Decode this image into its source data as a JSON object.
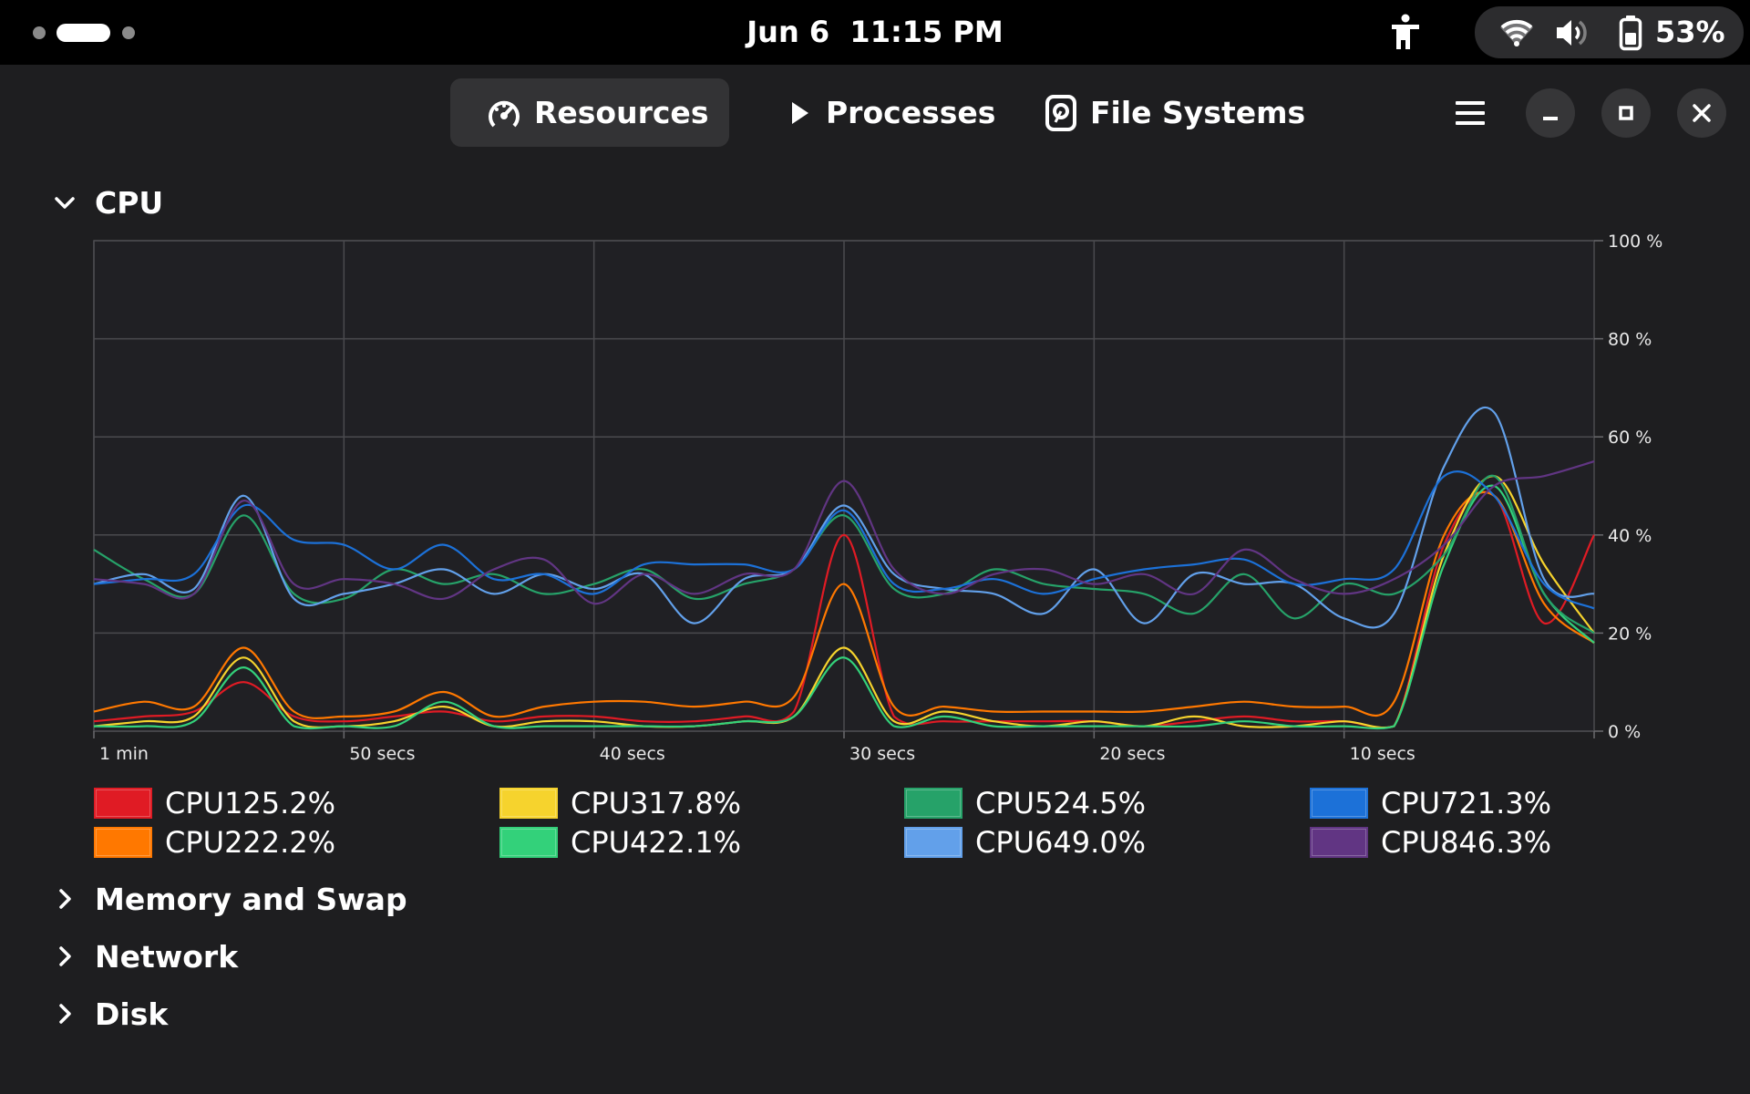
{
  "statusbar": {
    "date": "Jun 6",
    "time": "11:15 PM",
    "battery_percent": "53%",
    "icons": [
      "accessibility-icon",
      "wifi-icon",
      "volume-icon",
      "battery-icon"
    ]
  },
  "header": {
    "tabs": [
      {
        "label": "Resources",
        "icon": "gauge-icon",
        "active": true
      },
      {
        "label": "Processes",
        "icon": "play-icon",
        "active": false
      },
      {
        "label": "File Systems",
        "icon": "disk-icon",
        "active": false
      }
    ],
    "buttons": [
      "menu-icon",
      "minimize-icon",
      "maximize-icon",
      "close-icon"
    ]
  },
  "sections": {
    "cpu": {
      "label": "CPU",
      "expanded": true
    },
    "memory": {
      "label": "Memory and Swap",
      "expanded": false
    },
    "network": {
      "label": "Network",
      "expanded": false
    },
    "disk": {
      "label": "Disk",
      "expanded": false
    }
  },
  "chart_data": {
    "type": "line",
    "title": "",
    "xlabel": "",
    "ylabel": "",
    "x_unit": "seconds ago",
    "xlim": [
      60,
      0
    ],
    "ylim": [
      0,
      100
    ],
    "x_ticks": [
      {
        "value": 60,
        "label": "1 min"
      },
      {
        "value": 50,
        "label": "50 secs"
      },
      {
        "value": 40,
        "label": "40 secs"
      },
      {
        "value": 30,
        "label": "30 secs"
      },
      {
        "value": 20,
        "label": "20 secs"
      },
      {
        "value": 10,
        "label": "10 secs"
      }
    ],
    "y_ticks": [
      {
        "value": 100,
        "label": "100 %"
      },
      {
        "value": 80,
        "label": "80 %"
      },
      {
        "value": 60,
        "label": "60 %"
      },
      {
        "value": 40,
        "label": "40 %"
      },
      {
        "value": 20,
        "label": "20 %"
      },
      {
        "value": 0,
        "label": "0 %"
      }
    ],
    "grid": true,
    "x": [
      60,
      58,
      56,
      54,
      52,
      50,
      48,
      46,
      44,
      42,
      40,
      38,
      36,
      34,
      32,
      30,
      28,
      26,
      24,
      22,
      20,
      18,
      16,
      14,
      12,
      10,
      8,
      6,
      4,
      2,
      0
    ],
    "series": [
      {
        "name": "CPU1",
        "value_label": "25.2%",
        "color": "#e01b24",
        "values": [
          2,
          3,
          4,
          10,
          3,
          2,
          3,
          4,
          2,
          3,
          3,
          2,
          2,
          3,
          4,
          40,
          3,
          2,
          2,
          2,
          2,
          1,
          2,
          3,
          2,
          2,
          1,
          38,
          48,
          22,
          40
        ]
      },
      {
        "name": "CPU2",
        "value_label": "22.2%",
        "color": "#ff7800",
        "values": [
          4,
          6,
          5,
          17,
          4,
          3,
          4,
          8,
          3,
          5,
          6,
          6,
          5,
          6,
          7,
          30,
          5,
          5,
          4,
          4,
          4,
          4,
          5,
          6,
          5,
          5,
          6,
          40,
          48,
          26,
          18
        ]
      },
      {
        "name": "CPU3",
        "value_label": "17.8%",
        "color": "#f6d32d",
        "values": [
          1,
          2,
          3,
          15,
          2,
          1,
          2,
          5,
          1,
          2,
          2,
          1,
          1,
          2,
          3,
          17,
          2,
          4,
          2,
          1,
          2,
          1,
          3,
          1,
          1,
          2,
          1,
          36,
          52,
          34,
          20
        ]
      },
      {
        "name": "CPU4",
        "value_label": "22.1%",
        "color": "#33d17a",
        "values": [
          1,
          1,
          2,
          13,
          1,
          1,
          1,
          6,
          1,
          1,
          1,
          1,
          1,
          2,
          3,
          15,
          1,
          3,
          1,
          1,
          1,
          1,
          1,
          2,
          1,
          1,
          1,
          34,
          50,
          28,
          18
        ]
      },
      {
        "name": "CPU5",
        "value_label": "24.5%",
        "color": "#26a269",
        "values": [
          37,
          31,
          28,
          44,
          28,
          27,
          33,
          30,
          32,
          28,
          30,
          33,
          27,
          30,
          33,
          44,
          29,
          28,
          33,
          30,
          29,
          28,
          24,
          32,
          23,
          30,
          28,
          36,
          52,
          28,
          20
        ]
      },
      {
        "name": "CPU6",
        "value_label": "49.0%",
        "color": "#62a0ea",
        "values": [
          30,
          32,
          29,
          48,
          27,
          28,
          30,
          33,
          28,
          32,
          29,
          32,
          22,
          31,
          33,
          46,
          32,
          29,
          28,
          24,
          33,
          22,
          32,
          30,
          30,
          23,
          24,
          54,
          65,
          31,
          28
        ]
      },
      {
        "name": "CPU7",
        "value_label": "21.3%",
        "color": "#1c71d8",
        "values": [
          30,
          31,
          32,
          46,
          39,
          38,
          33,
          38,
          31,
          32,
          28,
          34,
          34,
          34,
          33,
          45,
          30,
          29,
          31,
          28,
          31,
          33,
          34,
          35,
          30,
          31,
          33,
          52,
          48,
          30,
          25
        ]
      },
      {
        "name": "CPU8",
        "value_label": "46.3%",
        "color": "#613583",
        "values": [
          31,
          30,
          28,
          47,
          30,
          31,
          30,
          27,
          33,
          35,
          26,
          32,
          28,
          32,
          33,
          51,
          33,
          28,
          32,
          33,
          30,
          32,
          28,
          37,
          31,
          28,
          31,
          38,
          50,
          52,
          55
        ]
      }
    ],
    "legend_placement": "bottom"
  }
}
